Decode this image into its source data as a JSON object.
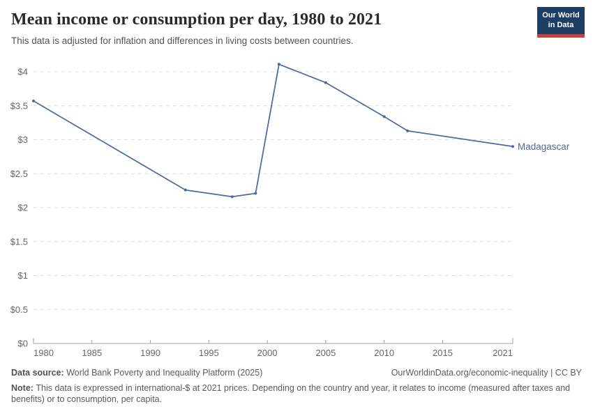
{
  "header": {
    "title": "Mean income or consumption per day, 1980 to 2021",
    "subtitle": "This data is adjusted for inflation and differences in living costs between countries."
  },
  "logo": {
    "line1": "Our World",
    "line2": "in Data",
    "bg_color": "#1d3d63",
    "stripe_color": "#cb3d3d"
  },
  "chart_data": {
    "type": "line",
    "title": "Mean income or consumption per day, 1980 to 2021",
    "xlabel": "",
    "ylabel": "",
    "xlim": [
      1980,
      2021
    ],
    "ylim": [
      0,
      4.2
    ],
    "grid": "horizontal-dashed",
    "legend_position": "end-of-line-label",
    "x_ticks": [
      1980,
      1985,
      1990,
      1995,
      2000,
      2005,
      2010,
      2015,
      2021
    ],
    "y_ticks": [
      {
        "v": 0,
        "label": "$0"
      },
      {
        "v": 0.5,
        "label": "$0.5"
      },
      {
        "v": 1,
        "label": "$1"
      },
      {
        "v": 1.5,
        "label": "$1.5"
      },
      {
        "v": 2,
        "label": "$2"
      },
      {
        "v": 2.5,
        "label": "$2.5"
      },
      {
        "v": 3,
        "label": "$3"
      },
      {
        "v": 3.5,
        "label": "$3.5"
      },
      {
        "v": 4,
        "label": "$4"
      }
    ],
    "series": [
      {
        "name": "Madagascar",
        "color": "#4c6a9c",
        "x": [
          1980,
          1993,
          1997,
          1999,
          2001,
          2005,
          2010,
          2012,
          2021
        ],
        "y": [
          3.57,
          2.26,
          2.16,
          2.21,
          4.11,
          3.84,
          3.34,
          3.13,
          2.9
        ]
      }
    ],
    "colors": {
      "grid": "#dcdcdc",
      "axis": "#a0a0a0",
      "tick_label": "#666666"
    }
  },
  "footer": {
    "source_label": "Data source:",
    "source_text": "World Bank Poverty and Inequality Platform (2025)",
    "link_text": "OurWorldinData.org/economic-inequality",
    "separator": "|",
    "license_text": "CC BY",
    "note_label": "Note:",
    "note_text": "This data is expressed in international-$ at 2021 prices. Depending on the country and year, it relates to income (measured after taxes and benefits) or to consumption, per capita."
  }
}
